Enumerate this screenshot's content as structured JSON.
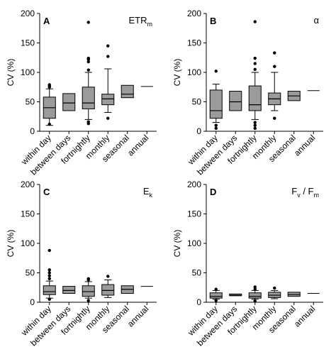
{
  "chart_data": [
    {
      "type": "box",
      "panel_label": "A",
      "title": "ETR",
      "title_sub": "m",
      "ylabel": "CV (%)",
      "ylim": [
        0,
        200
      ],
      "yticks": [
        "0",
        "50",
        "100",
        "150",
        "200"
      ],
      "categories": [
        "within day",
        "between days",
        "fortnightly",
        "monthly",
        "seasonal",
        "annual"
      ],
      "boxes": [
        {
          "lo": 10,
          "q1": 22,
          "med": 40,
          "q3": 58,
          "hi": 72,
          "outliers": [
            75,
            77,
            79,
            12
          ]
        },
        {
          "lo": 35,
          "q1": 35,
          "med": 48,
          "q3": 64,
          "hi": 64,
          "outliers": []
        },
        {
          "lo": 20,
          "q1": 38,
          "med": 48,
          "q3": 75,
          "hi": 100,
          "outliers": [
            13,
            16,
            104,
            118,
            122,
            124,
            185
          ]
        },
        {
          "lo": 32,
          "q1": 45,
          "med": 55,
          "q3": 63,
          "hi": 106,
          "outliers": [
            22,
            127,
            145
          ]
        },
        {
          "lo": 57,
          "q1": 57,
          "med": 63,
          "q3": 78,
          "hi": 78,
          "outliers": []
        },
        {
          "lo": 76,
          "q1": 76,
          "med": 76,
          "q3": 76,
          "hi": 76,
          "outliers": []
        }
      ]
    },
    {
      "type": "box",
      "panel_label": "B",
      "title": "α",
      "title_sub": "",
      "ylabel": "CV (%)",
      "ylim": [
        0,
        200
      ],
      "yticks": [
        "0",
        "50",
        "100",
        "150",
        "200"
      ],
      "categories": [
        "within day",
        "between days",
        "fortnightly",
        "monthly",
        "seasonal",
        "annual"
      ],
      "boxes": [
        {
          "lo": 15,
          "q1": 22,
          "med": 35,
          "q3": 70,
          "hi": 80,
          "outliers": [
            5,
            10,
            102
          ]
        },
        {
          "lo": 35,
          "q1": 35,
          "med": 50,
          "q3": 68,
          "hi": 68,
          "outliers": []
        },
        {
          "lo": 20,
          "q1": 35,
          "med": 45,
          "q3": 77,
          "hi": 100,
          "outliers": [
            5,
            10,
            15,
            105,
            115,
            124,
            186
          ]
        },
        {
          "lo": 35,
          "q1": 45,
          "med": 55,
          "q3": 65,
          "hi": 100,
          "outliers": [
            22,
            110,
            133
          ]
        },
        {
          "lo": 52,
          "q1": 52,
          "med": 60,
          "q3": 68,
          "hi": 68,
          "outliers": []
        },
        {
          "lo": 69,
          "q1": 69,
          "med": 69,
          "q3": 69,
          "hi": 69,
          "outliers": []
        }
      ]
    },
    {
      "type": "box",
      "panel_label": "C",
      "title": "E",
      "title_sub": "k",
      "ylabel": "CV (%)",
      "ylim": [
        0,
        200
      ],
      "yticks": [
        "0",
        "50",
        "100",
        "150",
        "200"
      ],
      "categories": [
        "within day",
        "between days",
        "fortnightly",
        "monthly",
        "seasonal",
        "annual"
      ],
      "boxes": [
        {
          "lo": 7,
          "q1": 13,
          "med": 18,
          "q3": 28,
          "hi": 36,
          "outliers": [
            5,
            40,
            45,
            50,
            55,
            88
          ]
        },
        {
          "lo": 15,
          "q1": 15,
          "med": 20,
          "q3": 27,
          "hi": 27,
          "outliers": []
        },
        {
          "lo": 7,
          "q1": 10,
          "med": 18,
          "q3": 28,
          "hi": 35,
          "outliers": [
            3,
            38,
            40
          ]
        },
        {
          "lo": 8,
          "q1": 12,
          "med": 20,
          "q3": 30,
          "hi": 38,
          "outliers": [
            44
          ]
        },
        {
          "lo": 15,
          "q1": 15,
          "med": 22,
          "q3": 28,
          "hi": 28,
          "outliers": []
        },
        {
          "lo": 27,
          "q1": 27,
          "med": 27,
          "q3": 27,
          "hi": 27,
          "outliers": []
        }
      ]
    },
    {
      "type": "box",
      "panel_label": "D",
      "title": "F",
      "title_sub": "v",
      "title_mid": " / F",
      "title_sub2": "m",
      "ylabel": "CV (%)",
      "ylim": [
        0,
        200
      ],
      "yticks": [
        "0",
        "50",
        "100",
        "150",
        "200"
      ],
      "categories": [
        "within day",
        "between days",
        "fortnightly",
        "monthly",
        "seasonal",
        "annual"
      ],
      "boxes": [
        {
          "lo": 5,
          "q1": 7,
          "med": 10,
          "q3": 16,
          "hi": 20,
          "outliers": [
            3,
            22
          ]
        },
        {
          "lo": 11,
          "q1": 11,
          "med": 12,
          "q3": 14,
          "hi": 14,
          "outliers": []
        },
        {
          "lo": 5,
          "q1": 7,
          "med": 10,
          "q3": 16,
          "hi": 20,
          "outliers": [
            2,
            22,
            26
          ]
        },
        {
          "lo": 6,
          "q1": 8,
          "med": 12,
          "q3": 17,
          "hi": 20,
          "outliers": [
            24
          ]
        },
        {
          "lo": 10,
          "q1": 10,
          "med": 13,
          "q3": 17,
          "hi": 17,
          "outliers": []
        },
        {
          "lo": 15,
          "q1": 15,
          "med": 15,
          "q3": 15,
          "hi": 15,
          "outliers": []
        }
      ]
    }
  ],
  "colors": {
    "box_fill": "#9b9b9b",
    "line": "#000000"
  }
}
